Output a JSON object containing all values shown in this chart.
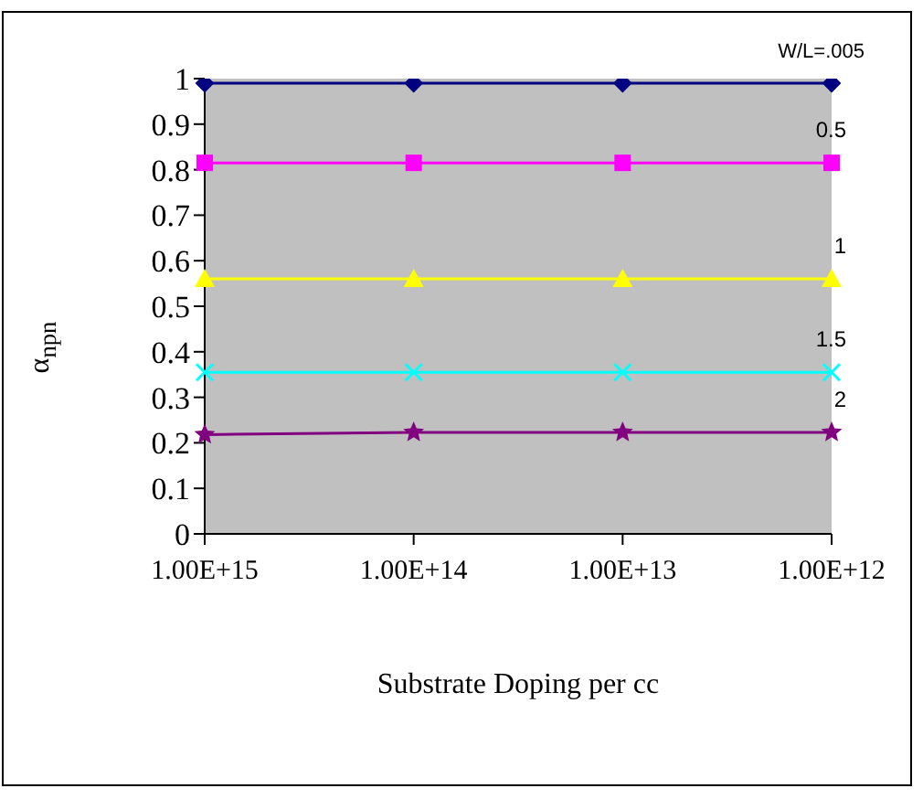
{
  "chart_data": {
    "type": "line",
    "xlabel": "Substrate Doping per cc",
    "ylabel": "α$_{npn}$",
    "categories": [
      "1.00E+15",
      "1.00E+14",
      "1.00E+13",
      "1.00E+12"
    ],
    "ylim": [
      0,
      1
    ],
    "yticks": [
      0,
      0.1,
      0.2,
      0.3,
      0.4,
      0.5,
      0.6,
      0.7,
      0.8,
      0.9,
      1
    ],
    "legend": false,
    "series": [
      {
        "name": "W/L=.005",
        "color": "#000080",
        "marker": "diamond",
        "values": [
          0.99,
          0.99,
          0.99,
          0.99
        ]
      },
      {
        "name": "0.5",
        "color": "#ff00ff",
        "marker": "square",
        "values": [
          0.815,
          0.815,
          0.815,
          0.815
        ]
      },
      {
        "name": "1",
        "color": "#ffff00",
        "marker": "triangle",
        "values": [
          0.56,
          0.56,
          0.56,
          0.56
        ]
      },
      {
        "name": "1.5",
        "color": "#00ffff",
        "marker": "cross",
        "values": [
          0.355,
          0.355,
          0.355,
          0.355
        ]
      },
      {
        "name": "2",
        "color": "#800080",
        "marker": "star",
        "values": [
          0.218,
          0.223,
          0.223,
          0.223
        ]
      }
    ]
  }
}
